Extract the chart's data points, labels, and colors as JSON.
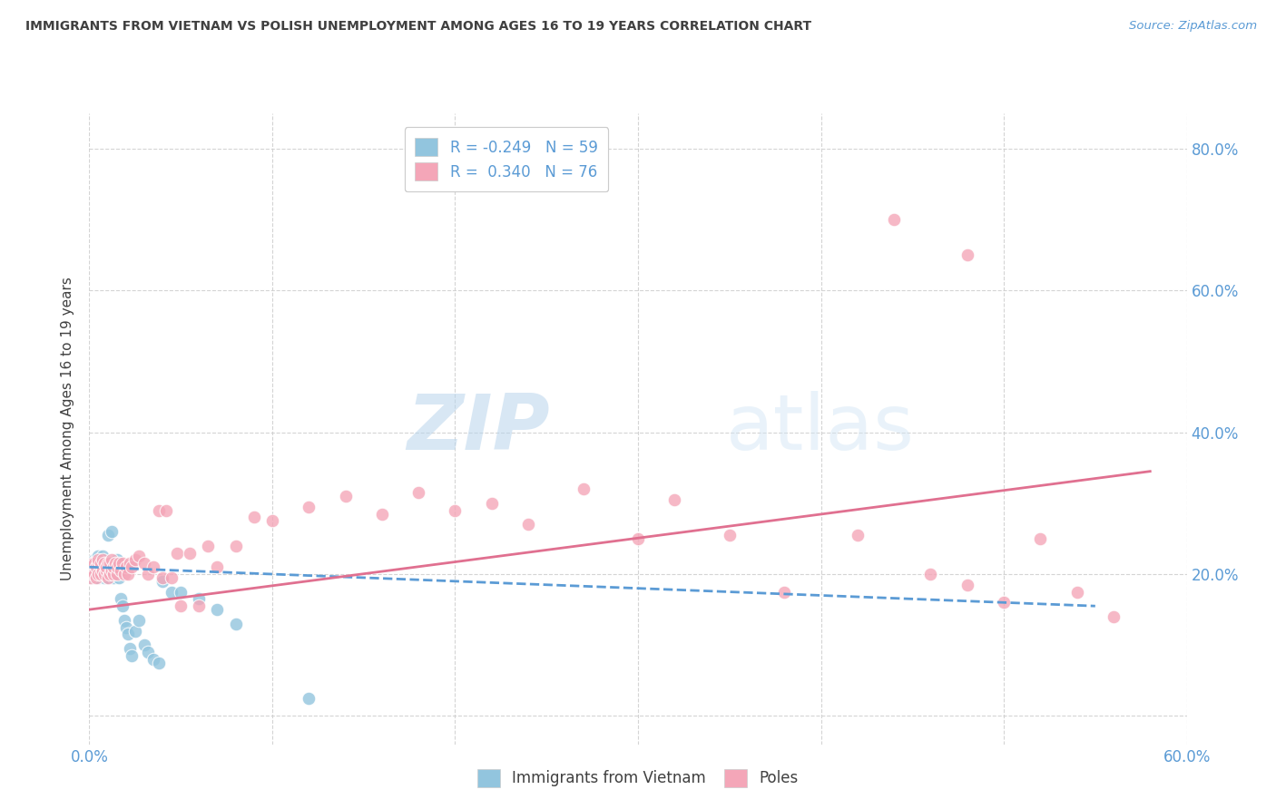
{
  "title": "IMMIGRANTS FROM VIETNAM VS POLISH UNEMPLOYMENT AMONG AGES 16 TO 19 YEARS CORRELATION CHART",
  "source": "Source: ZipAtlas.com",
  "ylabel": "Unemployment Among Ages 16 to 19 years",
  "ylabel_right_ticks": [
    "80.0%",
    "60.0%",
    "40.0%",
    "20.0%"
  ],
  "ylabel_right_vals": [
    0.8,
    0.6,
    0.4,
    0.2
  ],
  "xlim": [
    0.0,
    0.6
  ],
  "ylim": [
    -0.04,
    0.85
  ],
  "watermark_zip": "ZIP",
  "watermark_atlas": "atlas",
  "blue_color": "#92c5de",
  "pink_color": "#f4a6b8",
  "blue_line_color": "#5b9bd5",
  "pink_line_color": "#e07090",
  "title_color": "#404040",
  "right_axis_color": "#5b9bd5",
  "legend_text_color": "#5b9bd5",
  "grid_color": "#d0d0d0",
  "background_color": "#ffffff",
  "blue_scatter_x": [
    0.001,
    0.002,
    0.002,
    0.003,
    0.003,
    0.003,
    0.004,
    0.004,
    0.004,
    0.005,
    0.005,
    0.005,
    0.005,
    0.006,
    0.006,
    0.006,
    0.007,
    0.007,
    0.007,
    0.008,
    0.008,
    0.008,
    0.009,
    0.009,
    0.01,
    0.01,
    0.01,
    0.011,
    0.011,
    0.012,
    0.012,
    0.013,
    0.013,
    0.014,
    0.014,
    0.015,
    0.015,
    0.016,
    0.016,
    0.017,
    0.018,
    0.019,
    0.02,
    0.021,
    0.022,
    0.023,
    0.025,
    0.027,
    0.03,
    0.032,
    0.035,
    0.038,
    0.04,
    0.045,
    0.05,
    0.06,
    0.07,
    0.08,
    0.12
  ],
  "blue_scatter_y": [
    0.195,
    0.2,
    0.215,
    0.195,
    0.205,
    0.22,
    0.2,
    0.21,
    0.22,
    0.195,
    0.21,
    0.215,
    0.225,
    0.2,
    0.215,
    0.22,
    0.2,
    0.21,
    0.225,
    0.195,
    0.205,
    0.215,
    0.2,
    0.21,
    0.195,
    0.21,
    0.255,
    0.2,
    0.215,
    0.205,
    0.26,
    0.195,
    0.21,
    0.2,
    0.215,
    0.205,
    0.22,
    0.195,
    0.205,
    0.165,
    0.155,
    0.135,
    0.125,
    0.115,
    0.095,
    0.085,
    0.12,
    0.135,
    0.1,
    0.09,
    0.08,
    0.075,
    0.19,
    0.175,
    0.175,
    0.165,
    0.15,
    0.13,
    0.025
  ],
  "pink_scatter_x": [
    0.001,
    0.002,
    0.002,
    0.003,
    0.003,
    0.004,
    0.004,
    0.005,
    0.005,
    0.005,
    0.006,
    0.006,
    0.007,
    0.007,
    0.008,
    0.008,
    0.009,
    0.009,
    0.01,
    0.01,
    0.011,
    0.011,
    0.012,
    0.012,
    0.013,
    0.013,
    0.014,
    0.015,
    0.015,
    0.016,
    0.017,
    0.018,
    0.019,
    0.02,
    0.021,
    0.022,
    0.023,
    0.025,
    0.027,
    0.03,
    0.032,
    0.035,
    0.038,
    0.04,
    0.042,
    0.045,
    0.048,
    0.05,
    0.055,
    0.06,
    0.065,
    0.07,
    0.08,
    0.09,
    0.1,
    0.12,
    0.14,
    0.16,
    0.18,
    0.2,
    0.22,
    0.24,
    0.27,
    0.3,
    0.32,
    0.35,
    0.38,
    0.42,
    0.46,
    0.48,
    0.5,
    0.52,
    0.54,
    0.56,
    0.44,
    0.48
  ],
  "pink_scatter_y": [
    0.195,
    0.2,
    0.215,
    0.2,
    0.215,
    0.195,
    0.21,
    0.2,
    0.215,
    0.22,
    0.2,
    0.215,
    0.205,
    0.22,
    0.2,
    0.215,
    0.205,
    0.21,
    0.195,
    0.215,
    0.2,
    0.215,
    0.205,
    0.22,
    0.2,
    0.21,
    0.215,
    0.2,
    0.21,
    0.215,
    0.205,
    0.215,
    0.2,
    0.21,
    0.2,
    0.215,
    0.21,
    0.22,
    0.225,
    0.215,
    0.2,
    0.21,
    0.29,
    0.195,
    0.29,
    0.195,
    0.23,
    0.155,
    0.23,
    0.155,
    0.24,
    0.21,
    0.24,
    0.28,
    0.275,
    0.295,
    0.31,
    0.285,
    0.315,
    0.29,
    0.3,
    0.27,
    0.32,
    0.25,
    0.305,
    0.255,
    0.175,
    0.255,
    0.2,
    0.185,
    0.16,
    0.25,
    0.175,
    0.14,
    0.7,
    0.65
  ],
  "blue_trend_x": [
    0.0,
    0.55
  ],
  "blue_trend_y": [
    0.21,
    0.155
  ],
  "pink_trend_x": [
    0.0,
    0.58
  ],
  "pink_trend_y": [
    0.15,
    0.345
  ]
}
